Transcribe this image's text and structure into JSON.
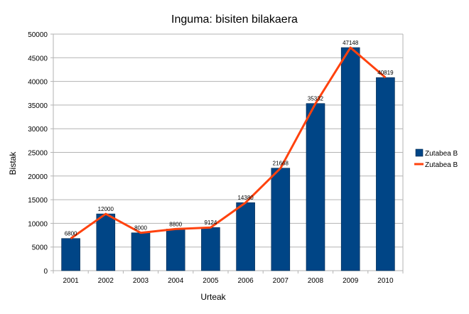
{
  "chart_data": {
    "type": "bar+line",
    "title": "Inguma: bisiten bilakaera",
    "xlabel": "Urteak",
    "ylabel": "Bistak",
    "ylim": [
      0,
      50000
    ],
    "ytick_step": 5000,
    "grid": true,
    "legend_placement": "right",
    "categories": [
      "2001",
      "2002",
      "2003",
      "2004",
      "2005",
      "2006",
      "2007",
      "2008",
      "2009",
      "2010"
    ],
    "series": [
      {
        "name": "Zutabea B",
        "kind": "bar",
        "color": "#004586",
        "values": [
          6800,
          12000,
          8000,
          8800,
          9124,
          14380,
          21668,
          35332,
          47148,
          40819
        ]
      },
      {
        "name": "Zutabea B",
        "kind": "line",
        "color": "#ff420e",
        "values": [
          6800,
          12000,
          8000,
          8800,
          9124,
          14380,
          21668,
          35332,
          47148,
          40819
        ]
      }
    ]
  }
}
